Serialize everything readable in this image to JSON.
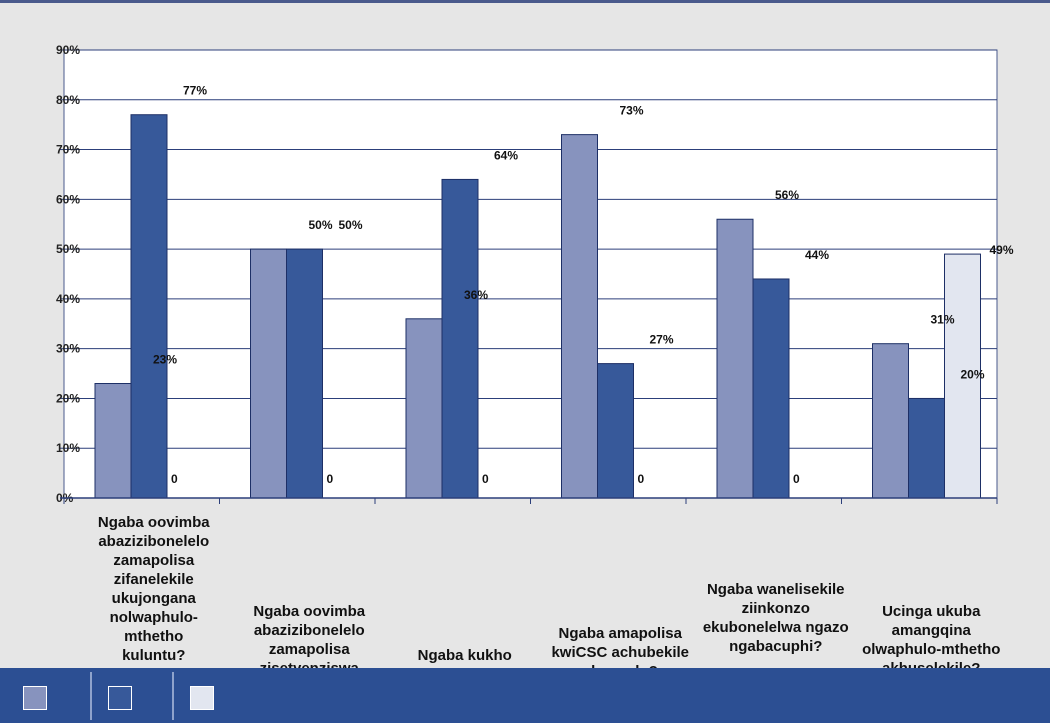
{
  "chart_data": {
    "type": "bar",
    "categories": [
      "Ngaba oovimba abazizibonelelo zamapolisa zifanelekile ukujongana nolwaphulo-mthetho kuluntu?",
      "Ngaba oovimba abazizibonelelo zamapolisa zisetyenziswa kakuhle? Resources",
      "Ngaba kukho amapolisa aneleyo kwiCSC?",
      "Ngaba amapolisa kwiCSC achubekile eluncedo?",
      "Ngaba wanelisekile ziinkonzo ekubonelelwa ngazo ngabacuphi?",
      "Ucinga ukuba amangqina olwaphulo-mthetho akhuselekile?"
    ],
    "series": [
      {
        "values": [
          23,
          50,
          36,
          73,
          56,
          31
        ],
        "labels": [
          "23%",
          "50%",
          "36%",
          "73%",
          "56%",
          "31%"
        ]
      },
      {
        "values": [
          77,
          50,
          64,
          27,
          44,
          20
        ],
        "labels": [
          "77%",
          "50%",
          "64%",
          "27%",
          "44%",
          "20%"
        ]
      },
      {
        "values": [
          0,
          0,
          0,
          0,
          0,
          49
        ],
        "labels": [
          "0",
          "0",
          "0",
          "0",
          "0",
          "49%"
        ]
      }
    ],
    "colors": [
      "#8793be",
      "#37599a",
      "#e2e6f0"
    ],
    "y_ticks": [
      "0%",
      "10%",
      "20%",
      "30%",
      "40%",
      "50%",
      "60%",
      "70%",
      "80%",
      "90%"
    ],
    "ylim": [
      0,
      90
    ],
    "grid": true,
    "legend_position": "bottom"
  }
}
